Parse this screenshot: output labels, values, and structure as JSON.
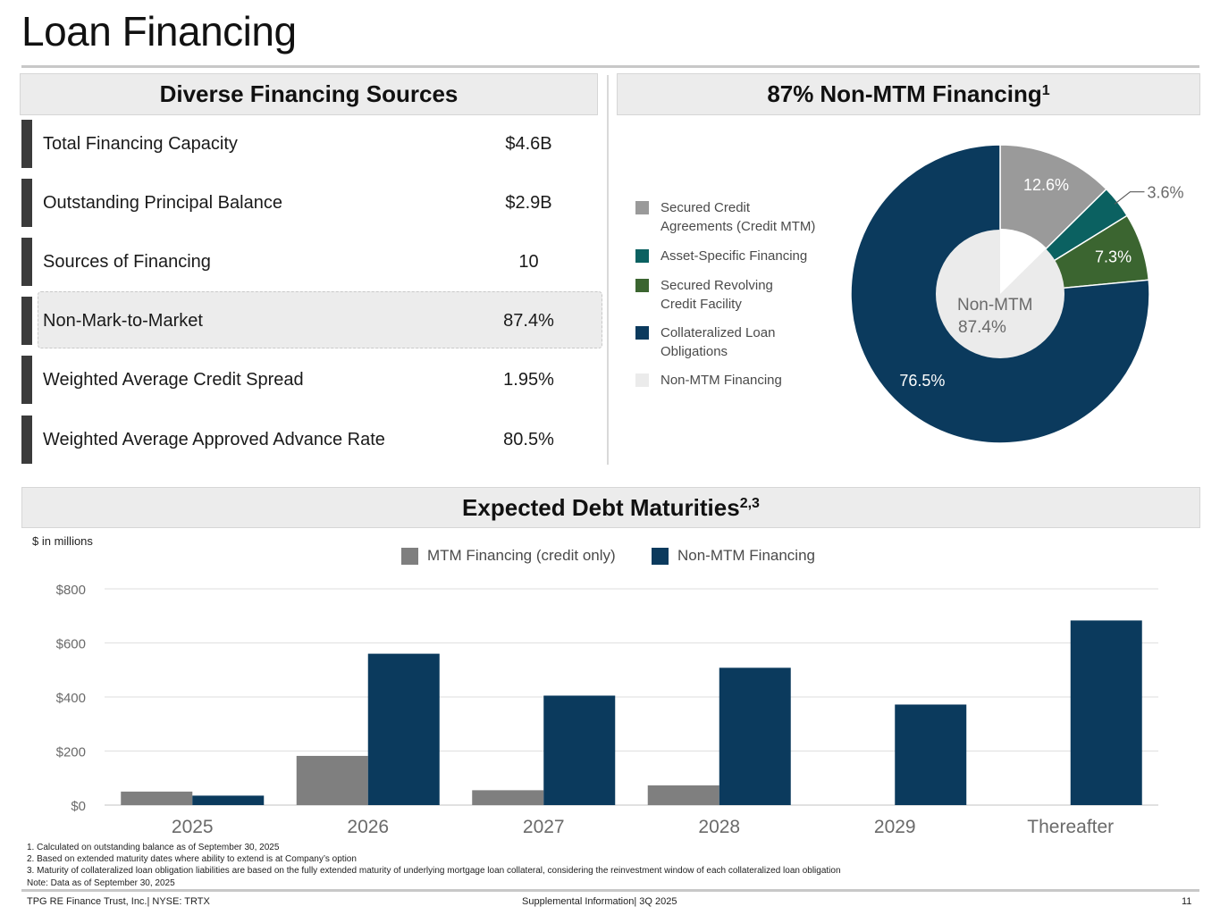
{
  "page": {
    "title": "Loan Financing"
  },
  "financing_sources": {
    "header": "Diverse Financing Sources",
    "rows": [
      {
        "label": "Total Financing Capacity",
        "value": "$4.6B"
      },
      {
        "label": "Outstanding Principal Balance",
        "value": "$2.9B"
      },
      {
        "label": "Sources of Financing",
        "value": "10"
      },
      {
        "label": "Non-Mark-to-Market",
        "value": "87.4%"
      },
      {
        "label": "Weighted Average Credit Spread",
        "value": "1.95%"
      },
      {
        "label": "Weighted Average Approved Advance Rate",
        "value": "80.5%"
      }
    ]
  },
  "non_mtm": {
    "header_pct": "87%",
    "header_text": "Non-MTM Financing",
    "header_sup": "1"
  },
  "debt_maturities": {
    "header_text": "Expected Debt Maturities",
    "header_sup": "2,3",
    "units_note": "$ in millions"
  },
  "colors": {
    "mtm_gray": "#7f7f7f",
    "navy": "#0b3a5d",
    "teal": "#0b6161",
    "green": "#3b6530",
    "secured_gray": "#9a9a9a",
    "light_gray": "#ebebeb"
  },
  "chart_data": [
    {
      "type": "pie",
      "title": "87% Non-MTM Financing",
      "donut_center_label": "Non-MTM",
      "donut_center_value": "87.4%",
      "slices": [
        {
          "name": "Secured Credit\nAgreements (Credit MTM)",
          "value": 12.6,
          "label": "12.6%",
          "color": "#9a9a9a"
        },
        {
          "name": "Asset-Specific Financing",
          "value": 3.6,
          "label": "3.6%",
          "color": "#0b6161"
        },
        {
          "name": "Secured Revolving\nCredit Facility",
          "value": 7.3,
          "label": "7.3%",
          "color": "#3b6530"
        },
        {
          "name": "Collateralized Loan\nObligations",
          "value": 76.5,
          "label": "76.5%",
          "color": "#0b3a5d"
        }
      ],
      "legend": [
        {
          "name": "Secured Credit\nAgreements (Credit MTM)",
          "color": "#9a9a9a"
        },
        {
          "name": "Asset-Specific Financing",
          "color": "#0b6161"
        },
        {
          "name": "Secured Revolving\nCredit Facility",
          "color": "#3b6530"
        },
        {
          "name": "Collateralized Loan\nObligations",
          "color": "#0b3a5d"
        },
        {
          "name": "Non-MTM Financing",
          "color": "#ebebeb"
        }
      ]
    },
    {
      "type": "bar",
      "title": "Expected Debt Maturities",
      "ylabel": "$ in millions",
      "categories": [
        "2025",
        "2026",
        "2027",
        "2028",
        "2029",
        "Thereafter"
      ],
      "series": [
        {
          "name": "MTM Financing (credit only)",
          "color": "#7f7f7f",
          "values": [
            50,
            182,
            55,
            73,
            0,
            0
          ]
        },
        {
          "name": "Non-MTM Financing",
          "color": "#0b3a5d",
          "values": [
            35,
            560,
            405,
            508,
            372,
            683
          ]
        }
      ],
      "ylim": [
        0,
        800
      ],
      "yticks": [
        0,
        200,
        400,
        600,
        800
      ],
      "ytick_labels": [
        "$0",
        "$200",
        "$400",
        "$600",
        "$800"
      ],
      "grid": true
    }
  ],
  "footnotes": [
    "1. Calculated on outstanding balance as of September 30, 2025",
    "2. Based on extended maturity dates where ability to extend is at Company’s option",
    "3. Maturity of collateralized loan obligation liabilities are based on the fully extended maturity of underlying mortgage loan collateral, considering the reinvestment window of each collateralized loan obligation",
    "Note: Data as of September 30, 2025"
  ],
  "footer": {
    "left": "TPG RE Finance Trust, Inc.| NYSE: TRTX",
    "center": "Supplemental Information| 3Q 2025",
    "page_number": "11"
  }
}
